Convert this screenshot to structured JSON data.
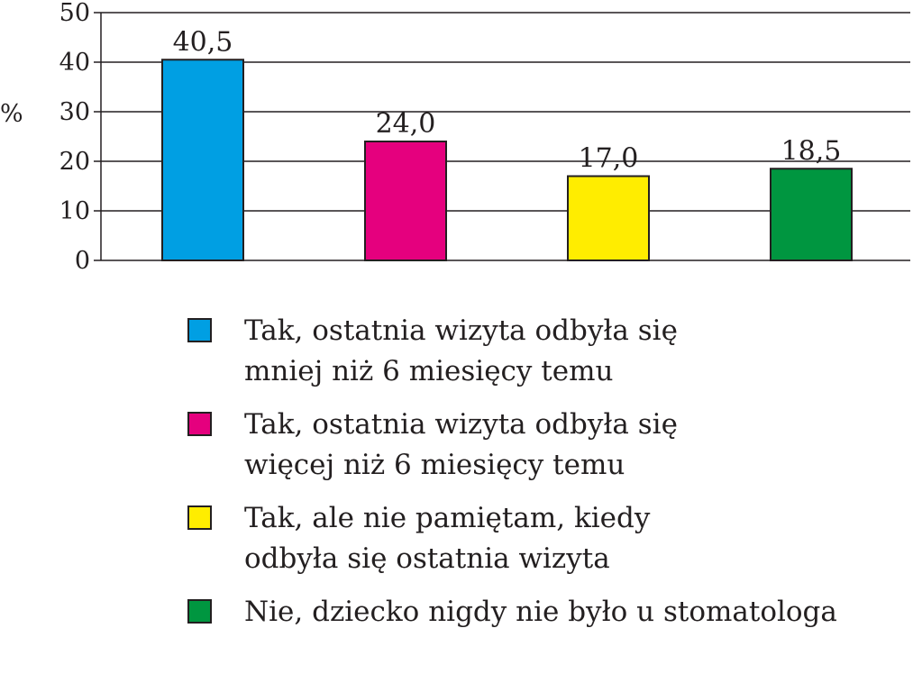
{
  "chart_data": {
    "type": "bar",
    "ylabel": "%",
    "ylim": [
      0,
      50
    ],
    "yticks": [
      0,
      10,
      20,
      30,
      40,
      50
    ],
    "grid": true,
    "legend_position": "bottom",
    "series": [
      {
        "name": "Tak, ostatnia wizyta odbyła się mniej niż 6 miesięcy temu",
        "lines": [
          "Tak, ostatnia wizyta odbyła się",
          "mniej niż 6 miesięcy temu"
        ],
        "value": 40.5,
        "label": "40,5",
        "color": "#009fe3"
      },
      {
        "name": "Tak, ostatnia wizyta odbyła się więcej niż 6 miesięcy temu",
        "lines": [
          "Tak, ostatnia wizyta odbyła się",
          "więcej niż 6 miesięcy temu"
        ],
        "value": 24.0,
        "label": "24,0",
        "color": "#e5007e"
      },
      {
        "name": "Tak, ale nie pamiętam, kiedy odbyła się ostatnia wizyta",
        "lines": [
          "Tak, ale nie pamiętam, kiedy",
          "odbyła się ostatnia wizyta"
        ],
        "value": 17.0,
        "label": "17,0",
        "color": "#ffed00"
      },
      {
        "name": "Nie, dziecko nigdy nie było u stomatologa",
        "lines": [
          "Nie, dziecko nigdy nie było u stomatologa"
        ],
        "value": 18.5,
        "label": "18,5",
        "color": "#009640"
      }
    ]
  }
}
